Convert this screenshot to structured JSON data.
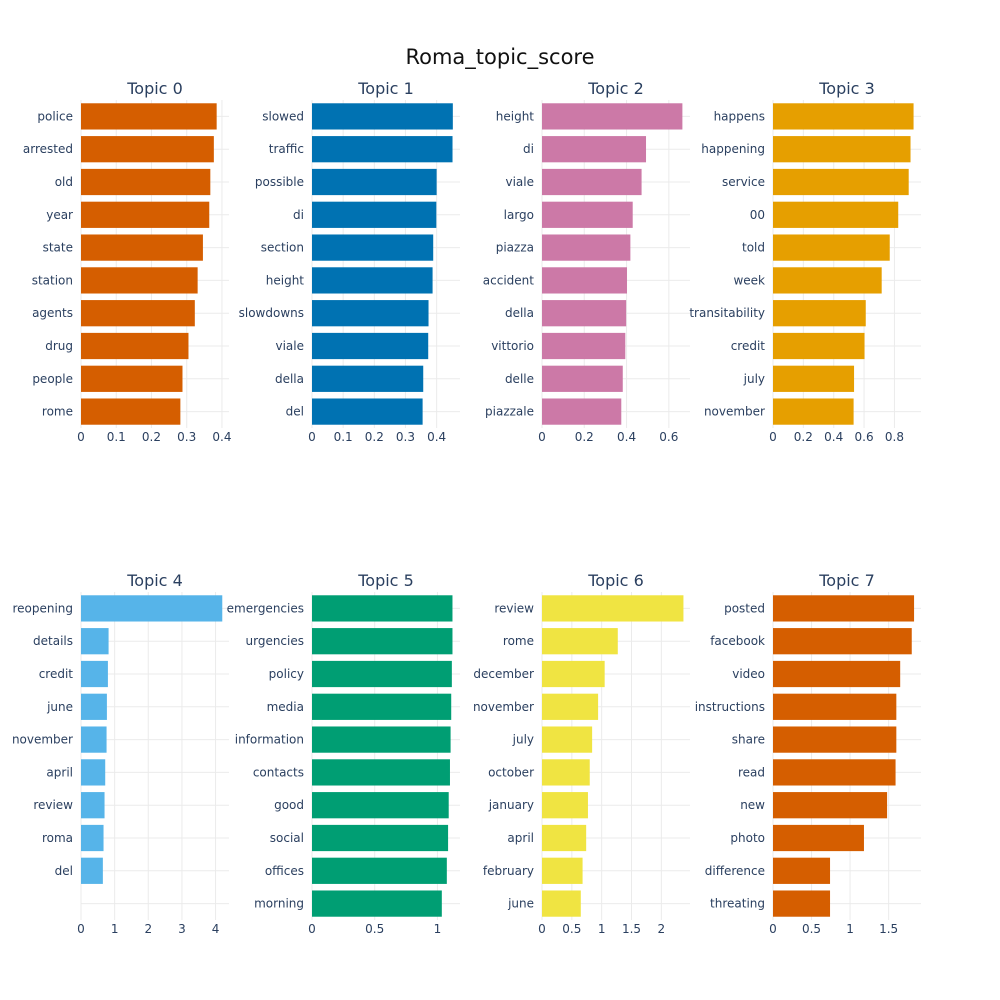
{
  "chart_data": {
    "type": "bar",
    "title": "Roma_topic_score",
    "grid": true,
    "orientation": "horizontal",
    "panels": [
      {
        "title": "Topic 0",
        "color": "#D55E00",
        "categories": [
          "police",
          "arrested",
          "old",
          "year",
          "state",
          "station",
          "agents",
          "drug",
          "people",
          "rome"
        ],
        "values": [
          0.385,
          0.377,
          0.367,
          0.364,
          0.346,
          0.331,
          0.323,
          0.305,
          0.288,
          0.282
        ],
        "xlim": [
          0,
          0.42
        ],
        "ticks": [
          0,
          0.1,
          0.2,
          0.3,
          0.4
        ],
        "tick_labels": [
          "0",
          "0.1",
          "0.2",
          "0.3",
          "0.4"
        ]
      },
      {
        "title": "Topic 1",
        "color": "#0072B2",
        "categories": [
          "slowed",
          "traffic",
          "possible",
          "di",
          "section",
          "height",
          "slowdowns",
          "viale",
          "della",
          "del"
        ],
        "values": [
          0.452,
          0.451,
          0.4,
          0.399,
          0.389,
          0.387,
          0.374,
          0.373,
          0.357,
          0.355
        ],
        "xlim": [
          0,
          0.475
        ],
        "ticks": [
          0,
          0.1,
          0.2,
          0.3,
          0.4
        ],
        "tick_labels": [
          "0",
          "0.1",
          "0.2",
          "0.3",
          "0.4"
        ]
      },
      {
        "title": "Topic 2",
        "color": "#CC79A7",
        "categories": [
          "height",
          "di",
          "viale",
          "largo",
          "piazza",
          "accident",
          "della",
          "vittorio",
          "delle",
          "piazzale"
        ],
        "values": [
          0.664,
          0.492,
          0.471,
          0.429,
          0.418,
          0.402,
          0.398,
          0.394,
          0.382,
          0.375
        ],
        "xlim": [
          0,
          0.7
        ],
        "ticks": [
          0,
          0.2,
          0.4,
          0.6
        ],
        "tick_labels": [
          "0",
          "0.2",
          "0.4",
          "0.6"
        ]
      },
      {
        "title": "Topic 3",
        "color": "#E69F00",
        "categories": [
          "happens",
          "happening",
          "service",
          "00",
          "told",
          "week",
          "transitability",
          "credit",
          "july",
          "november"
        ],
        "values": [
          0.926,
          0.906,
          0.894,
          0.825,
          0.769,
          0.716,
          0.611,
          0.603,
          0.534,
          0.531
        ],
        "xlim": [
          0,
          0.975
        ],
        "ticks": [
          0,
          0.2,
          0.4,
          0.6,
          0.8
        ],
        "tick_labels": [
          "0",
          "0.2",
          "0.4",
          "0.6",
          "0.8"
        ]
      },
      {
        "title": "Topic 4",
        "color": "#56B4E9",
        "categories": [
          "reopening",
          "details",
          "credit",
          "june",
          "november",
          "april",
          "review",
          "roma",
          "del"
        ],
        "values": [
          4.2,
          0.82,
          0.8,
          0.77,
          0.76,
          0.72,
          0.7,
          0.67,
          0.65
        ],
        "xlim": [
          0,
          4.4
        ],
        "ticks": [
          0,
          1,
          2,
          3,
          4
        ],
        "tick_labels": [
          "0",
          "1",
          "2",
          "3",
          "4"
        ]
      },
      {
        "title": "Topic 5",
        "color": "#009E73",
        "categories": [
          "emergencies",
          "urgencies",
          "policy",
          "media",
          "information",
          "contacts",
          "good",
          "social",
          "offices",
          "morning"
        ],
        "values": [
          1.12,
          1.12,
          1.115,
          1.11,
          1.105,
          1.1,
          1.09,
          1.085,
          1.075,
          1.035
        ],
        "xlim": [
          0,
          1.18
        ],
        "ticks": [
          0,
          0.5,
          1
        ],
        "tick_labels": [
          "0",
          "0.5",
          "1"
        ]
      },
      {
        "title": "Topic 6",
        "color": "#F0E442",
        "categories": [
          "review",
          "rome",
          "december",
          "november",
          "july",
          "october",
          "january",
          "april",
          "february",
          "june"
        ],
        "values": [
          2.37,
          1.27,
          1.05,
          0.94,
          0.84,
          0.8,
          0.77,
          0.74,
          0.68,
          0.65
        ],
        "xlim": [
          0,
          2.48
        ],
        "ticks": [
          0,
          0.5,
          1,
          1.5,
          2
        ],
        "tick_labels": [
          "0",
          "0.5",
          "1",
          "1.5",
          "2"
        ]
      },
      {
        "title": "Topic 7",
        "color": "#D55E00",
        "categories": [
          "posted",
          "facebook",
          "video",
          "instructions",
          "share",
          "read",
          "new",
          "photo",
          "difference",
          "threating"
        ],
        "values": [
          1.83,
          1.8,
          1.65,
          1.6,
          1.6,
          1.59,
          1.48,
          1.18,
          0.74,
          0.74
        ],
        "xlim": [
          0,
          1.92
        ],
        "ticks": [
          0,
          0.5,
          1,
          1.5
        ],
        "tick_labels": [
          "0",
          "0.5",
          "1",
          "1.5"
        ]
      }
    ]
  }
}
